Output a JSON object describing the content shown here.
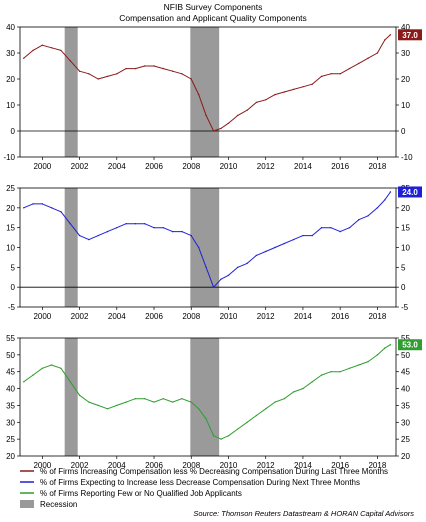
{
  "header": {
    "title": "NFIB Survey Components",
    "subtitle": "Compensation and Applicant Quality Components"
  },
  "source": "Source: Thomson Reuters Datastream & HORAN Capital Advisors",
  "chart_data": [
    {
      "type": "line",
      "id": "panel-1",
      "xlim": [
        1998.8,
        2019.0
      ],
      "ylim": [
        -10,
        40
      ],
      "yticks": [
        -10,
        0,
        10,
        20,
        30,
        40
      ],
      "xticks": [
        2000,
        2002,
        2004,
        2006,
        2008,
        2010,
        2012,
        2014,
        2016,
        2018
      ],
      "xtick_labels": [
        "2000",
        "2002",
        "2004",
        "2006",
        "2008",
        "2010",
        "2012",
        "2014",
        "2016",
        "2018"
      ],
      "zero_line": true,
      "last_value_label": "37.0",
      "color": "#8b1a1a",
      "recessions": [
        [
          2001.2,
          2001.9
        ],
        [
          2007.95,
          2009.5
        ]
      ],
      "series": [
        {
          "x": [
            1999.0,
            1999.5,
            2000.0,
            2000.5,
            2001.0,
            2001.5,
            2002.0,
            2002.5,
            2003.0,
            2003.5,
            2004.0,
            2004.5,
            2005.0,
            2005.5,
            2006.0,
            2006.5,
            2007.0,
            2007.5,
            2008.0,
            2008.4,
            2008.8,
            2009.2,
            2009.6,
            2010.0,
            2010.5,
            2011.0,
            2011.5,
            2012.0,
            2012.5,
            2013.0,
            2013.5,
            2014.0,
            2014.5,
            2015.0,
            2015.5,
            2016.0,
            2016.5,
            2017.0,
            2017.5,
            2018.0,
            2018.4,
            2018.7
          ],
          "y": [
            28,
            31,
            33,
            32,
            31,
            27,
            23,
            22,
            20,
            21,
            22,
            24,
            24,
            25,
            25,
            24,
            23,
            22,
            20,
            14,
            6,
            0,
            1,
            3,
            6,
            8,
            11,
            12,
            14,
            15,
            16,
            17,
            18,
            21,
            22,
            22,
            24,
            26,
            28,
            30,
            35,
            37
          ]
        }
      ]
    },
    {
      "type": "line",
      "id": "panel-2",
      "xlim": [
        1998.8,
        2019.0
      ],
      "ylim": [
        -5,
        25
      ],
      "yticks": [
        -5,
        0,
        5,
        10,
        15,
        20,
        25
      ],
      "xticks": [
        2000,
        2002,
        2004,
        2006,
        2008,
        2010,
        2012,
        2014,
        2016,
        2018
      ],
      "xtick_labels": [
        "2000",
        "2002",
        "2004",
        "2006",
        "2008",
        "2010",
        "2012",
        "2014",
        "2016",
        "2018"
      ],
      "zero_line": true,
      "last_value_label": "24.0",
      "color": "#1f1fd6",
      "recessions": [
        [
          2001.2,
          2001.9
        ],
        [
          2007.95,
          2009.5
        ]
      ],
      "series": [
        {
          "x": [
            1999.0,
            1999.5,
            2000.0,
            2000.5,
            2001.0,
            2001.5,
            2002.0,
            2002.5,
            2003.0,
            2003.5,
            2004.0,
            2004.5,
            2005.0,
            2005.5,
            2006.0,
            2006.5,
            2007.0,
            2007.5,
            2008.0,
            2008.4,
            2008.8,
            2009.2,
            2009.6,
            2010.0,
            2010.5,
            2011.0,
            2011.5,
            2012.0,
            2012.5,
            2013.0,
            2013.5,
            2014.0,
            2014.5,
            2015.0,
            2015.5,
            2016.0,
            2016.5,
            2017.0,
            2017.5,
            2018.0,
            2018.4,
            2018.7
          ],
          "y": [
            20,
            21,
            21,
            20,
            19,
            16,
            13,
            12,
            13,
            14,
            15,
            16,
            16,
            16,
            15,
            15,
            14,
            14,
            13,
            10,
            5,
            0,
            2,
            3,
            5,
            6,
            8,
            9,
            10,
            11,
            12,
            13,
            13,
            15,
            15,
            14,
            15,
            17,
            18,
            20,
            22,
            24
          ]
        }
      ]
    },
    {
      "type": "line",
      "id": "panel-3",
      "xlim": [
        1998.8,
        2019.0
      ],
      "ylim": [
        20,
        55
      ],
      "yticks": [
        20,
        25,
        30,
        35,
        40,
        45,
        50,
        55
      ],
      "xticks": [
        2000,
        2002,
        2004,
        2006,
        2008,
        2010,
        2012,
        2014,
        2016,
        2018
      ],
      "xtick_labels": [
        "2000",
        "2002",
        "2004",
        "2006",
        "2008",
        "2010",
        "2012",
        "2014",
        "2016",
        "2018"
      ],
      "zero_line": false,
      "last_value_label": "53.0",
      "color": "#2e9e2e",
      "recessions": [
        [
          2001.2,
          2001.9
        ],
        [
          2007.95,
          2009.5
        ]
      ],
      "series": [
        {
          "x": [
            1999.0,
            1999.5,
            2000.0,
            2000.5,
            2001.0,
            2001.5,
            2002.0,
            2002.5,
            2003.0,
            2003.5,
            2004.0,
            2004.5,
            2005.0,
            2005.5,
            2006.0,
            2006.5,
            2007.0,
            2007.5,
            2008.0,
            2008.4,
            2008.8,
            2009.2,
            2009.6,
            2010.0,
            2010.5,
            2011.0,
            2011.5,
            2012.0,
            2012.5,
            2013.0,
            2013.5,
            2014.0,
            2014.5,
            2015.0,
            2015.5,
            2016.0,
            2016.5,
            2017.0,
            2017.5,
            2018.0,
            2018.4,
            2018.7
          ],
          "y": [
            42,
            44,
            46,
            47,
            46,
            42,
            38,
            36,
            35,
            34,
            35,
            36,
            37,
            37,
            36,
            37,
            36,
            37,
            36,
            34,
            31,
            26,
            25,
            26,
            28,
            30,
            32,
            34,
            36,
            37,
            39,
            40,
            42,
            44,
            45,
            45,
            46,
            47,
            48,
            50,
            52,
            53
          ]
        }
      ]
    }
  ],
  "legend": [
    {
      "label": "% of Firms Increasing Compensation less % Decreasing Compensation During Last Three Months",
      "color": "#8b1a1a",
      "kind": "line"
    },
    {
      "label": "% of Firms Expecting to Increase less Decrease Compensation During Next Three Months",
      "color": "#1f1fd6",
      "kind": "line"
    },
    {
      "label": "% of Firms Reporting Few or No Qualified Job Applicants",
      "color": "#2e9e2e",
      "kind": "line"
    },
    {
      "label": "Recession",
      "color": "#999999",
      "kind": "box"
    }
  ]
}
